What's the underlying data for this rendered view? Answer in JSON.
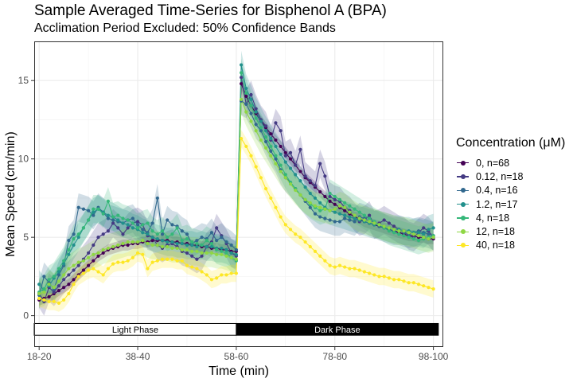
{
  "chart_data": {
    "type": "line",
    "title": "Sample Averaged Time-Series for Bisphenol A (BPA)",
    "subtitle": "Acclimation Period Excluded: 50% Confidence Bands",
    "xlabel": "Time (min)",
    "ylabel": "Mean Speed (cm/min)",
    "x_ticks": [
      "18-20",
      "38-40",
      "58-60",
      "78-80",
      "98-100"
    ],
    "y_ticks": [
      0,
      5,
      10,
      15
    ],
    "xlim": [
      18,
      101
    ],
    "ylim": [
      -2,
      17.5
    ],
    "grid": true,
    "legend_title": "Concentration (μM)",
    "legend_position": "right",
    "x": [
      19,
      20,
      21,
      22,
      23,
      24,
      25,
      26,
      27,
      28,
      29,
      30,
      31,
      32,
      33,
      34,
      35,
      36,
      37,
      38,
      39,
      40,
      41,
      42,
      43,
      44,
      45,
      46,
      47,
      48,
      49,
      50,
      51,
      52,
      53,
      54,
      55,
      56,
      57,
      58,
      59,
      60,
      61,
      62,
      63,
      64,
      65,
      66,
      67,
      68,
      69,
      70,
      71,
      72,
      73,
      74,
      75,
      76,
      77,
      78,
      79,
      80,
      81,
      82,
      83,
      84,
      85,
      86,
      87,
      88,
      89,
      90,
      91,
      92,
      93,
      94,
      95,
      96,
      97,
      98,
      99
    ],
    "series": [
      {
        "name": "0, n=68",
        "color": "#440154",
        "band": 0.35,
        "values": [
          1.0,
          1.1,
          1.2,
          1.4,
          1.6,
          1.8,
          2.0,
          2.3,
          2.6,
          2.9,
          3.2,
          3.5,
          3.8,
          4.0,
          4.2,
          4.3,
          4.4,
          4.5,
          4.5,
          4.6,
          4.6,
          4.7,
          4.7,
          4.8,
          4.8,
          4.8,
          4.8,
          4.7,
          4.7,
          4.6,
          4.6,
          4.5,
          4.5,
          4.4,
          4.4,
          4.3,
          4.3,
          4.2,
          4.2,
          4.1,
          4.1,
          14.8,
          14.0,
          13.4,
          12.9,
          12.4,
          12.0,
          11.6,
          11.2,
          10.8,
          10.4,
          10.0,
          9.6,
          9.2,
          8.8,
          8.5,
          8.2,
          7.9,
          7.6,
          7.3,
          7.1,
          6.9,
          6.7,
          6.5,
          6.3,
          6.2,
          6.0,
          5.9,
          5.8,
          5.7,
          5.6,
          5.5,
          5.4,
          5.3,
          5.2,
          5.1,
          5.1,
          5.0,
          5.0,
          4.9,
          4.9
        ]
      },
      {
        "name": "0.12, n=18",
        "color": "#443A83",
        "band": 0.9,
        "values": [
          1.4,
          0.9,
          1.8,
          1.5,
          1.9,
          2.3,
          2.6,
          2.9,
          3.2,
          3.6,
          4.0,
          4.5,
          5.0,
          5.2,
          5.4,
          5.9,
          5.6,
          5.2,
          5.6,
          5.9,
          6.0,
          5.8,
          5.1,
          5.0,
          4.5,
          4.3,
          4.5,
          4.6,
          4.4,
          4.1,
          4.0,
          3.8,
          3.6,
          3.8,
          4.4,
          4.7,
          5.6,
          5.1,
          4.6,
          4.0,
          3.8,
          15.2,
          13.5,
          14.1,
          13.2,
          12.5,
          12.1,
          11.2,
          12.3,
          11.8,
          10.2,
          10.4,
          9.6,
          10.6,
          8.9,
          8.6,
          8.3,
          9.7,
          8.9,
          7.6,
          7.4,
          7.3,
          6.9,
          6.7,
          6.3,
          6.0,
          6.1,
          6.4,
          5.8,
          5.9,
          6.1,
          5.9,
          5.7,
          5.5,
          5.4,
          5.1,
          5.0,
          5.3,
          5.6,
          5.4,
          5.0
        ]
      },
      {
        "name": "0.4, n=16",
        "color": "#31688E",
        "band": 0.9,
        "values": [
          1.3,
          2.5,
          2.1,
          1.7,
          2.6,
          3.2,
          4.8,
          5.2,
          6.9,
          6.8,
          6.7,
          6.4,
          6.9,
          6.6,
          6.2,
          6.1,
          6.0,
          5.9,
          6.1,
          6.2,
          5.8,
          5.5,
          5.3,
          5.9,
          7.5,
          5.2,
          6.1,
          5.8,
          5.7,
          5.4,
          5.2,
          4.6,
          4.8,
          5.0,
          4.9,
          5.3,
          4.8,
          5.0,
          4.7,
          4.5,
          4.2,
          13.7,
          13.5,
          12.9,
          12.2,
          11.8,
          11.1,
          10.5,
          10.0,
          9.3,
          8.8,
          8.5,
          8.1,
          7.7,
          7.3,
          6.9,
          6.5,
          6.3,
          6.2,
          6.1,
          6.0,
          6.0,
          6.2,
          6.1,
          6.0,
          6.3,
          6.2,
          6.0,
          5.9,
          5.7,
          5.6,
          5.5,
          5.4,
          5.4,
          5.3,
          5.2,
          5.3,
          5.4,
          5.3,
          5.2,
          5.1
        ]
      },
      {
        "name": "1.2, n=17",
        "color": "#21908C",
        "band": 0.9,
        "values": [
          2.0,
          1.6,
          1.9,
          2.4,
          2.8,
          3.3,
          3.9,
          4.5,
          5.0,
          5.6,
          6.1,
          6.6,
          6.8,
          6.6,
          6.4,
          6.3,
          6.1,
          5.9,
          5.8,
          5.6,
          5.5,
          5.3,
          5.2,
          5.0,
          4.9,
          4.8,
          4.7,
          4.7,
          4.6,
          4.6,
          4.5,
          4.5,
          4.4,
          4.5,
          4.4,
          4.4,
          4.3,
          4.3,
          4.2,
          4.0,
          3.9,
          16.0,
          14.5,
          13.8,
          13.0,
          12.4,
          11.8,
          11.3,
          10.8,
          10.3,
          9.8,
          9.4,
          9.0,
          8.6,
          8.2,
          7.8,
          7.5,
          7.2,
          6.9,
          6.7,
          6.6,
          6.5,
          6.4,
          6.3,
          6.2,
          6.1,
          6.0,
          5.9,
          5.8,
          5.8,
          5.7,
          5.6,
          5.5,
          5.5,
          5.4,
          5.4,
          5.3,
          5.3,
          5.2,
          5.5,
          5.6
        ]
      },
      {
        "name": "4, n=18",
        "color": "#35B779",
        "band": 0.9,
        "values": [
          1.5,
          1.7,
          2.3,
          2.5,
          3.0,
          3.5,
          4.2,
          4.9,
          5.2,
          5.6,
          6.1,
          6.8,
          6.8,
          6.5,
          7.3,
          6.3,
          6.4,
          6.2,
          6.1,
          5.9,
          5.6,
          5.8,
          5.9,
          5.4,
          5.2,
          5.4,
          5.0,
          5.2,
          5.6,
          4.8,
          4.9,
          4.7,
          4.6,
          4.5,
          4.8,
          4.6,
          4.2,
          4.1,
          4.0,
          3.7,
          3.5,
          15.5,
          14.2,
          13.4,
          12.6,
          12.0,
          11.4,
          10.8,
          10.2,
          9.6,
          9.0,
          8.5,
          8.1,
          7.7,
          7.4,
          7.1,
          6.9,
          6.7,
          6.8,
          7.8,
          7.6,
          7.4,
          7.2,
          7.0,
          6.8,
          6.6,
          6.4,
          6.2,
          6.0,
          5.8,
          5.6,
          5.4,
          5.3,
          5.2,
          5.1,
          5.0,
          4.9,
          4.8,
          4.9,
          5.0,
          5.1
        ]
      },
      {
        "name": "12, n=18",
        "color": "#8FD744",
        "band": 0.9,
        "values": [
          1.4,
          1.5,
          2.0,
          1.8,
          2.2,
          2.6,
          3.0,
          3.2,
          3.4,
          3.5,
          3.7,
          3.9,
          4.0,
          4.2,
          4.3,
          4.4,
          4.5,
          4.6,
          4.7,
          4.7,
          4.7,
          4.8,
          4.6,
          4.5,
          4.5,
          4.4,
          4.4,
          4.3,
          4.3,
          4.2,
          4.2,
          4.1,
          4.1,
          4.0,
          4.0,
          4.0,
          3.9,
          3.9,
          3.8,
          3.7,
          3.6,
          13.8,
          13.0,
          12.4,
          11.8,
          11.2,
          10.7,
          10.2,
          9.7,
          9.2,
          8.8,
          8.4,
          8.0,
          7.7,
          7.4,
          7.2,
          7.0,
          6.9,
          6.8,
          6.7,
          6.8,
          7.0,
          6.9,
          6.6,
          6.4,
          6.2,
          6.1,
          6.0,
          5.9,
          5.8,
          5.7,
          5.6,
          5.5,
          5.4,
          5.4,
          5.3,
          5.2,
          5.1,
          5.0,
          4.9,
          5.0
        ]
      },
      {
        "name": "40, n=18",
        "color": "#FDE725",
        "band": 0.55,
        "values": [
          1.1,
          1.0,
          0.9,
          0.9,
          0.8,
          1.0,
          1.4,
          2.0,
          2.5,
          2.7,
          2.9,
          3.0,
          2.8,
          2.6,
          3.0,
          3.3,
          3.4,
          3.4,
          3.5,
          3.7,
          4.0,
          3.9,
          3.0,
          3.4,
          3.5,
          3.6,
          3.6,
          3.6,
          3.5,
          3.5,
          3.2,
          3.1,
          3.0,
          2.8,
          2.6,
          2.3,
          2.4,
          2.6,
          2.6,
          2.7,
          2.7,
          11.3,
          10.8,
          10.2,
          9.5,
          8.8,
          8.1,
          7.5,
          6.9,
          6.3,
          5.8,
          5.5,
          5.2,
          5.0,
          4.7,
          4.4,
          4.1,
          3.8,
          3.5,
          3.2,
          3.1,
          3.2,
          3.1,
          3.0,
          3.0,
          2.9,
          2.8,
          2.7,
          2.6,
          2.5,
          2.5,
          2.4,
          2.3,
          2.3,
          2.2,
          2.1,
          2.1,
          2.0,
          1.9,
          1.8,
          1.7
        ]
      }
    ],
    "phase_bar": {
      "light": {
        "label": "Light Phase",
        "x_start": 18,
        "x_end": 59,
        "fill": "#ffffff",
        "text_color": "#000000"
      },
      "dark": {
        "label": "Dark Phase",
        "x_start": 59,
        "x_end": 100,
        "fill": "#000000",
        "text_color": "#ffffff"
      },
      "y_low": -1.25,
      "y_high": -0.5
    }
  }
}
